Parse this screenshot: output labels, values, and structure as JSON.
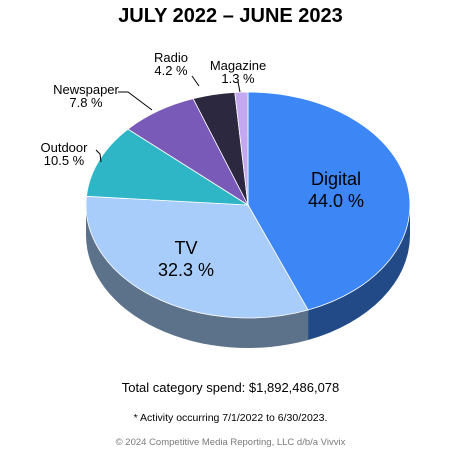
{
  "title": "JULY 2022 – JUNE 2023",
  "chart_data": {
    "type": "pie",
    "title": "JULY 2022 – JUNE 2023",
    "slices": [
      {
        "label": "Digital",
        "value": 44.0,
        "value_label": "44.0 %",
        "color": "#3d86f5"
      },
      {
        "label": "TV",
        "value": 32.3,
        "value_label": "32.3 %",
        "color": "#a8cdfa"
      },
      {
        "label": "Outdoor",
        "value": 10.5,
        "value_label": "10.5 %",
        "color": "#2fb6c6"
      },
      {
        "label": "Newspaper",
        "value": 7.8,
        "value_label": "7.8 %",
        "color": "#7a5ab8"
      },
      {
        "label": "Radio",
        "value": 4.2,
        "value_label": "4.2 %",
        "color": "#2b2840"
      },
      {
        "label": "Magazine",
        "value": 1.3,
        "value_label": "1.3 %",
        "color": "#c3a8f0"
      }
    ],
    "labels_inside": [
      "Digital",
      "TV"
    ],
    "legend": "none"
  },
  "footer": {
    "total": "Total category spend: $1,892,486,078",
    "note": "* Activity occurring 7/1/2022 to 6/30/2023.",
    "copyright": "© 2024 Competitive Media Reporting, LLC d/b/a Vivvix"
  }
}
